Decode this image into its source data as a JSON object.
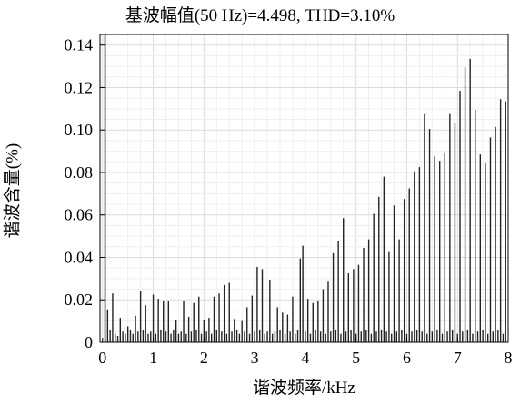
{
  "chart_data": {
    "type": "bar",
    "title": "基波幅值(50 Hz)=4.498, THD=3.10%",
    "xlabel": "谐波频率/kHz",
    "ylabel": "谐波含量(%)",
    "xlim": [
      -0.05,
      8.0
    ],
    "ylim": [
      0,
      0.145
    ],
    "xticks": [
      0,
      1,
      2,
      3,
      4,
      5,
      6,
      7,
      8
    ],
    "yticks": [
      0,
      0.02,
      0.04,
      0.06,
      0.08,
      0.1,
      0.12,
      0.14
    ],
    "ytick_labels": [
      "0",
      "0.02",
      "0.04",
      "0.06",
      "0.08",
      "0.10",
      "0.12",
      "0.14"
    ],
    "grid": true,
    "fundamental": {
      "x": 0.05,
      "value": 0.145
    },
    "major_x": [
      0.1,
      0.2,
      0.35,
      0.5,
      0.65,
      0.75,
      0.85,
      1.0,
      1.1,
      1.2,
      1.3,
      1.45,
      1.6,
      1.7,
      1.8,
      1.9,
      2.0,
      2.1,
      2.2,
      2.3,
      2.4,
      2.5,
      2.6,
      2.75,
      2.85,
      2.95,
      3.05,
      3.15,
      3.3,
      3.45,
      3.55,
      3.65,
      3.75,
      3.9,
      3.95,
      4.05,
      4.15,
      4.25,
      4.35,
      4.45,
      4.55,
      4.65,
      4.75,
      4.85,
      4.95,
      5.05,
      5.15,
      5.25,
      5.35,
      5.45,
      5.55,
      5.65,
      5.75,
      5.85,
      5.95,
      6.05,
      6.15,
      6.25,
      6.35,
      6.45,
      6.55,
      6.65,
      6.75,
      6.85,
      6.95,
      7.05,
      7.15,
      7.25,
      7.35,
      7.45,
      7.55,
      7.65,
      7.75,
      7.85,
      7.95
    ],
    "major_values": [
      0.0155,
      0.023,
      0.0115,
      0.0075,
      0.0125,
      0.024,
      0.0175,
      0.0225,
      0.0205,
      0.0195,
      0.0195,
      0.0105,
      0.0195,
      0.012,
      0.0185,
      0.0215,
      0.0105,
      0.0115,
      0.0215,
      0.023,
      0.027,
      0.028,
      0.011,
      0.01,
      0.0165,
      0.022,
      0.0355,
      0.0345,
      0.0295,
      0.0165,
      0.014,
      0.013,
      0.0215,
      0.0395,
      0.0455,
      0.0205,
      0.0185,
      0.0195,
      0.025,
      0.0285,
      0.042,
      0.0475,
      0.0585,
      0.0325,
      0.0345,
      0.0365,
      0.0445,
      0.0485,
      0.0605,
      0.0685,
      0.078,
      0.0425,
      0.0645,
      0.0485,
      0.0675,
      0.0725,
      0.0805,
      0.0825,
      0.1075,
      0.1005,
      0.0875,
      0.0855,
      0.0895,
      0.1075,
      0.1035,
      0.1185,
      0.1295,
      0.1335,
      0.1095,
      0.0885,
      0.0845,
      0.0965,
      0.1015,
      0.1145,
      0.1135
    ],
    "minor_x": [
      0.15,
      0.25,
      0.3,
      0.4,
      0.45,
      0.55,
      0.6,
      0.7,
      0.8,
      0.9,
      0.95,
      1.05,
      1.15,
      1.25,
      1.35,
      1.4,
      1.5,
      1.55,
      1.65,
      1.75,
      1.85,
      1.95,
      2.05,
      2.15,
      2.25,
      2.35,
      2.45,
      2.55,
      2.65,
      2.7,
      2.8,
      2.9,
      3.0,
      3.1,
      3.2,
      3.25,
      3.35,
      3.4,
      3.5,
      3.6,
      3.7,
      3.8,
      3.85,
      4.0,
      4.1,
      4.2,
      4.3,
      4.4,
      4.5,
      4.6,
      4.7,
      4.8,
      4.9,
      5.0,
      5.1,
      5.2,
      5.3,
      5.4,
      5.5,
      5.6,
      5.7,
      5.8,
      5.9,
      6.0,
      6.1,
      6.2,
      6.3,
      6.4,
      6.5,
      6.6,
      6.7,
      6.8,
      6.9,
      7.0,
      7.1,
      7.2,
      7.3,
      7.4,
      7.5,
      7.6,
      7.7,
      7.8,
      7.9
    ],
    "minor_values": [
      0.006,
      0.004,
      0.003,
      0.005,
      0.004,
      0.006,
      0.004,
      0.005,
      0.006,
      0.004,
      0.005,
      0.004,
      0.006,
      0.005,
      0.004,
      0.006,
      0.004,
      0.005,
      0.004,
      0.005,
      0.006,
      0.004,
      0.005,
      0.004,
      0.006,
      0.005,
      0.004,
      0.005,
      0.006,
      0.004,
      0.005,
      0.004,
      0.005,
      0.006,
      0.004,
      0.005,
      0.004,
      0.005,
      0.006,
      0.004,
      0.005,
      0.004,
      0.006,
      0.005,
      0.004,
      0.006,
      0.005,
      0.004,
      0.005,
      0.006,
      0.004,
      0.005,
      0.006,
      0.004,
      0.005,
      0.006,
      0.004,
      0.005,
      0.006,
      0.005,
      0.004,
      0.005,
      0.006,
      0.004,
      0.005,
      0.006,
      0.005,
      0.004,
      0.005,
      0.006,
      0.004,
      0.005,
      0.006,
      0.004,
      0.005,
      0.006,
      0.004,
      0.005,
      0.006,
      0.004,
      0.005,
      0.006,
      0.004
    ]
  }
}
